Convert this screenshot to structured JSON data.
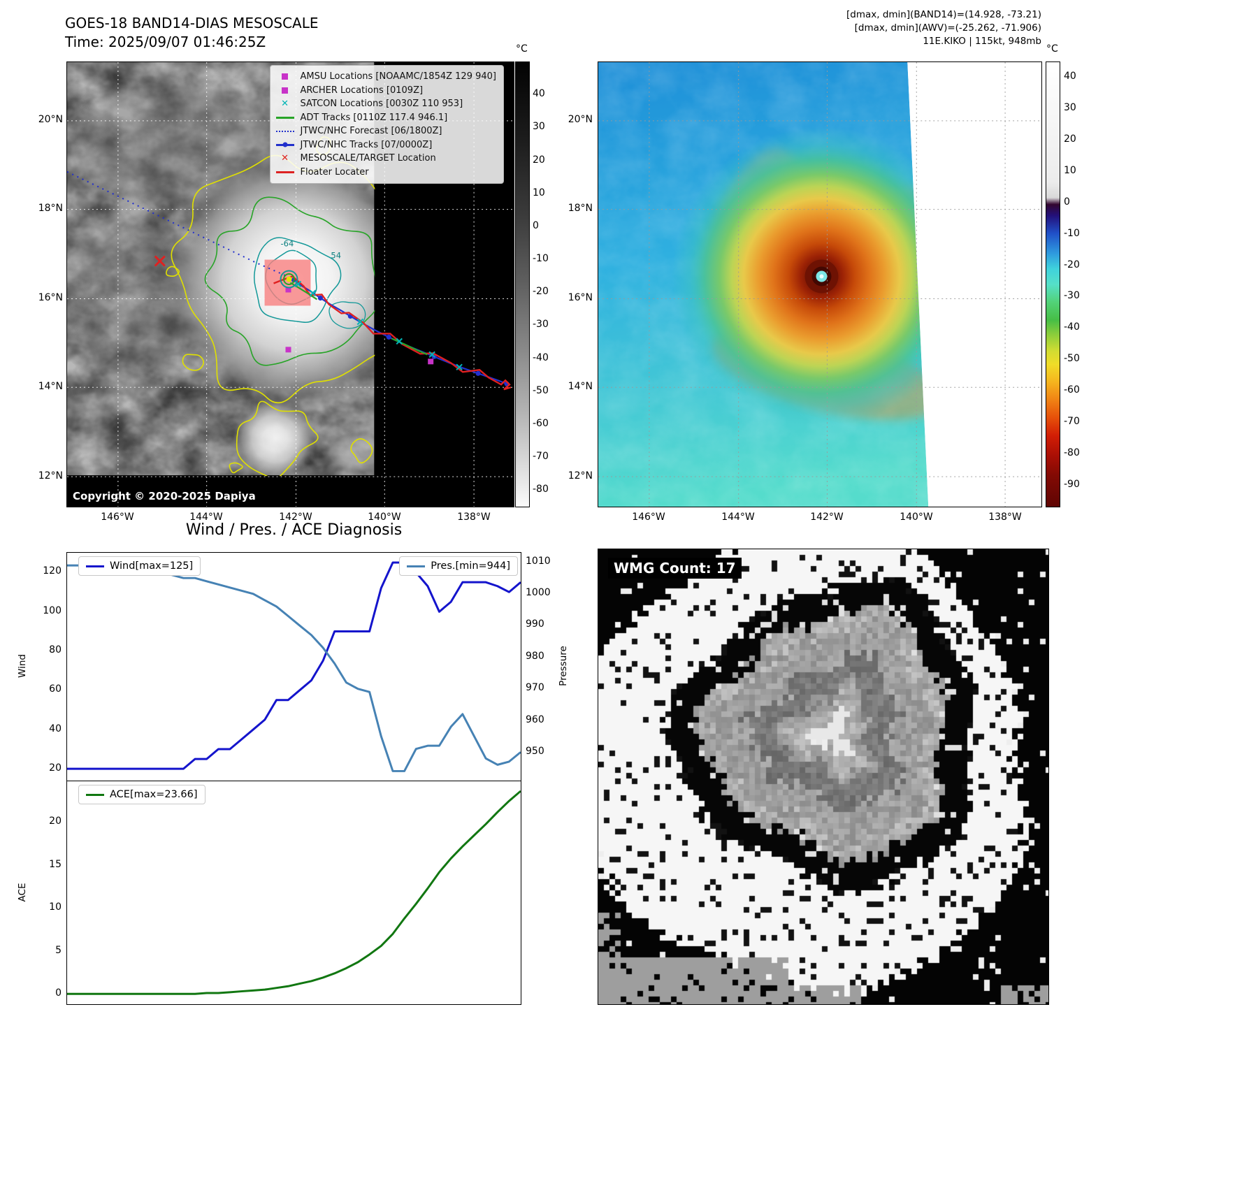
{
  "goes_panel": {
    "title": "GOES-18 BAND14-DIAS MESOSCALE",
    "time_label": "Time: 2025/09/07 01:46:25Z",
    "copyright": "Copyright © 2020-2025 Dapiya",
    "legend_items": [
      {
        "marker": "square",
        "color": "#c833c8",
        "label": "AMSU Locations [NOAAMC/1854Z 129 940]"
      },
      {
        "marker": "square",
        "color": "#c833c8",
        "label": "ARCHER Locations [0109Z]"
      },
      {
        "marker": "cross",
        "color": "#00b4b4",
        "label": "SATCON Locations [0030Z 110 953]"
      },
      {
        "marker": "line",
        "color": "#28a428",
        "label": "ADT Tracks [0110Z 117.4 946.1]"
      },
      {
        "marker": "dotted-line",
        "color": "#2230cc",
        "label": "JTWC/NHC Forecast [06/1800Z]"
      },
      {
        "marker": "line-dot",
        "color": "#2230cc",
        "label": "JTWC/NHC Tracks [07/0000Z]"
      },
      {
        "marker": "cross",
        "color": "#dd2222",
        "label": "MESOSCALE/TARGET Location"
      },
      {
        "marker": "line",
        "color": "#dd2222",
        "label": "Floater Locater"
      }
    ],
    "lat_tick_labels": [
      "20°N",
      "18°N",
      "16°N",
      "14°N",
      "12°N"
    ],
    "lon_tick_labels": [
      "146°W",
      "144°W",
      "142°W",
      "140°W",
      "138°W"
    ],
    "contour_labels": [
      "-64",
      "54"
    ],
    "colorbar": {
      "unit": "°C",
      "ticks": [
        "40",
        "30",
        "20",
        "10",
        "0",
        "-10",
        "-20",
        "-30",
        "-40",
        "-50",
        "-60",
        "-70",
        "-80"
      ]
    }
  },
  "awv_panel": {
    "header_lines": [
      "[dmax, dmin](BAND14)=(14.928, -73.21)",
      "[dmax, dmin](AWV)=(-25.262, -71.906)",
      "11E.KIKO | 115kt, 948mb"
    ],
    "lat_tick_labels": [
      "20°N",
      "18°N",
      "16°N",
      "14°N",
      "12°N"
    ],
    "lon_tick_labels": [
      "146°W",
      "144°W",
      "142°W",
      "140°W",
      "138°W"
    ],
    "colorbar": {
      "unit": "°C",
      "ticks": [
        "40",
        "30",
        "20",
        "10",
        "0",
        "-10",
        "-20",
        "-30",
        "-40",
        "-50",
        "-60",
        "-70",
        "-80",
        "-90"
      ]
    }
  },
  "wmg_panel": {
    "count_label": "WMG Count: 17"
  },
  "chart_data": [
    {
      "type": "line",
      "title": "Wind / Pres. / ACE Diagnosis",
      "ylabel_left": "Wind",
      "ylabel_right": "Pressure",
      "yticks_left": [
        20,
        40,
        60,
        80,
        100,
        120
      ],
      "yticks_right": [
        950,
        960,
        970,
        980,
        990,
        1000,
        1010
      ],
      "ylim_left": [
        14,
        130
      ],
      "ylim_right": [
        941,
        1013
      ],
      "grid": false,
      "legend_position": "wind top-left, pressure top-right",
      "series": [
        {
          "name": "Wind[max=125]",
          "color": "#1414cc",
          "axis": "left",
          "values": [
            20,
            20,
            20,
            20,
            20,
            20,
            20,
            20,
            20,
            20,
            20,
            25,
            25,
            30,
            30,
            35,
            40,
            45,
            55,
            55,
            60,
            65,
            75,
            90,
            90,
            90,
            90,
            112,
            125,
            125,
            120,
            113,
            100,
            105,
            115,
            115,
            115,
            113,
            110,
            115
          ]
        },
        {
          "name": "Pres.[min=944]",
          "color": "#4682b4",
          "axis": "right",
          "values": [
            1009,
            1009,
            1009,
            1009,
            1008,
            1008,
            1008,
            1007,
            1007,
            1006,
            1005,
            1005,
            1004,
            1003,
            1002,
            1001,
            1000,
            998,
            996,
            993,
            990,
            987,
            983,
            978,
            972,
            970,
            969,
            955,
            944,
            944,
            951,
            952,
            952,
            958,
            962,
            955,
            948,
            946,
            947,
            950
          ]
        }
      ]
    },
    {
      "type": "line",
      "ylabel": "ACE",
      "yticks": [
        0,
        5,
        10,
        15,
        20
      ],
      "ylim": [
        -1.2,
        24.8
      ],
      "grid": false,
      "legend_position": "top-left",
      "series": [
        {
          "name": "ACE[max=23.66]",
          "color": "#117711",
          "axis": "left",
          "values": [
            0,
            0,
            0,
            0,
            0,
            0,
            0,
            0,
            0,
            0,
            0,
            0,
            0.1,
            0.1,
            0.2,
            0.3,
            0.4,
            0.5,
            0.7,
            0.9,
            1.2,
            1.5,
            1.9,
            2.4,
            3.0,
            3.7,
            4.6,
            5.6,
            7.0,
            8.8,
            10.5,
            12.3,
            14.2,
            15.8,
            17.2,
            18.5,
            19.8,
            21.2,
            22.5,
            23.66
          ]
        }
      ]
    }
  ]
}
